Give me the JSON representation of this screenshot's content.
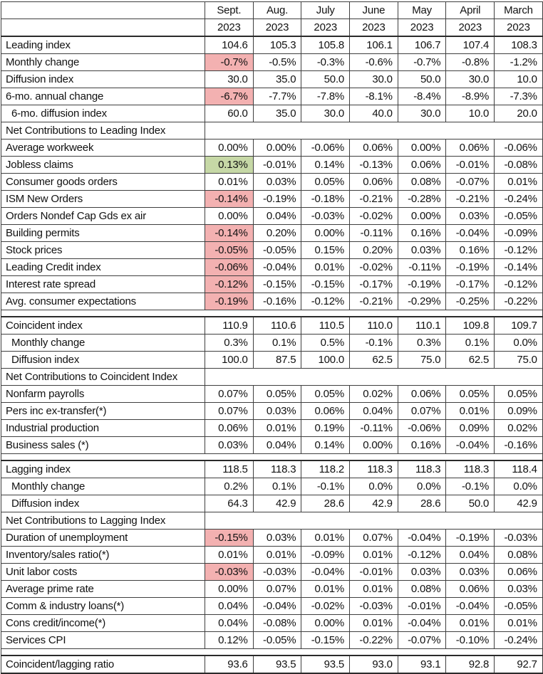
{
  "colors": {
    "highlight_red": "#f3b1b1",
    "highlight_green": "#c6d8a6",
    "border": "#3f3f3f",
    "text": "#111111"
  },
  "header": {
    "months": [
      "Sept.",
      "Aug.",
      "July",
      "June",
      "May",
      "April",
      "March"
    ],
    "years": [
      "2023",
      "2023",
      "2023",
      "2023",
      "2023",
      "2023",
      "2023"
    ]
  },
  "rows": [
    {
      "type": "data",
      "label": "Leading index",
      "values": [
        "104.6",
        "105.3",
        "105.8",
        "106.1",
        "106.7",
        "107.4",
        "108.3"
      ]
    },
    {
      "type": "data",
      "label": "Monthly change",
      "values": [
        "-0.7%",
        "-0.5%",
        "-0.3%",
        "-0.6%",
        "-0.7%",
        "-0.8%",
        "-1.2%"
      ],
      "highlight": "red"
    },
    {
      "type": "data",
      "label": "Diffusion index",
      "values": [
        "30.0",
        "35.0",
        "50.0",
        "30.0",
        "50.0",
        "30.0",
        "10.0"
      ]
    },
    {
      "type": "data",
      "label": "6-mo. annual change",
      "values": [
        "-6.7%",
        "-7.7%",
        "-7.8%",
        "-8.1%",
        "-8.4%",
        "-8.9%",
        "-7.3%"
      ],
      "highlight": "red"
    },
    {
      "type": "data",
      "label": "6-mo. diffusion index",
      "indent": true,
      "values": [
        "60.0",
        "35.0",
        "30.0",
        "40.0",
        "30.0",
        "10.0",
        "20.0"
      ]
    },
    {
      "type": "section",
      "label": "Net Contributions to Leading Index"
    },
    {
      "type": "data",
      "label": "Average workweek",
      "values": [
        "0.00%",
        "0.00%",
        "-0.06%",
        "0.06%",
        "0.00%",
        "0.06%",
        "-0.06%"
      ]
    },
    {
      "type": "data",
      "label": "Jobless claims",
      "values": [
        "0.13%",
        "-0.01%",
        "0.14%",
        "-0.13%",
        "0.06%",
        "-0.01%",
        "-0.08%"
      ],
      "highlight": "green"
    },
    {
      "type": "data",
      "label": "Consumer goods orders",
      "values": [
        "0.01%",
        "0.03%",
        "0.05%",
        "0.06%",
        "0.08%",
        "-0.07%",
        "0.01%"
      ]
    },
    {
      "type": "data",
      "label": "ISM New Orders",
      "values": [
        "-0.14%",
        "-0.19%",
        "-0.18%",
        "-0.21%",
        "-0.28%",
        "-0.21%",
        "-0.24%"
      ],
      "highlight": "red"
    },
    {
      "type": "data",
      "label": "Orders Nondef Cap Gds ex air",
      "values": [
        "0.00%",
        "0.04%",
        "-0.03%",
        "-0.02%",
        "0.00%",
        "0.03%",
        "-0.05%"
      ]
    },
    {
      "type": "data",
      "label": "Building permits",
      "values": [
        "-0.14%",
        "0.20%",
        "0.00%",
        "-0.11%",
        "0.16%",
        "-0.04%",
        "-0.09%"
      ],
      "highlight": "red"
    },
    {
      "type": "data",
      "label": "Stock prices",
      "values": [
        "-0.05%",
        "-0.05%",
        "0.15%",
        "0.20%",
        "0.03%",
        "0.16%",
        "-0.12%"
      ],
      "highlight": "red"
    },
    {
      "type": "data",
      "label": "Leading Credit index",
      "values": [
        "-0.06%",
        "-0.04%",
        "0.01%",
        "-0.02%",
        "-0.11%",
        "-0.19%",
        "-0.14%"
      ],
      "highlight": "red"
    },
    {
      "type": "data",
      "label": "Interest rate spread",
      "values": [
        "-0.12%",
        "-0.15%",
        "-0.15%",
        "-0.17%",
        "-0.19%",
        "-0.17%",
        "-0.12%"
      ],
      "highlight": "red"
    },
    {
      "type": "data",
      "label": "Avg. consumer expectations",
      "values": [
        "-0.19%",
        "-0.16%",
        "-0.12%",
        "-0.21%",
        "-0.29%",
        "-0.25%",
        "-0.22%"
      ],
      "highlight": "red"
    },
    {
      "type": "spacer"
    },
    {
      "type": "data",
      "label": "Coincident index",
      "values": [
        "110.9",
        "110.6",
        "110.5",
        "110.0",
        "110.1",
        "109.8",
        "109.7"
      ]
    },
    {
      "type": "data",
      "label": "Monthly change",
      "indent": true,
      "values": [
        "0.3%",
        "0.1%",
        "0.5%",
        "-0.1%",
        "0.3%",
        "0.1%",
        "0.0%"
      ]
    },
    {
      "type": "data",
      "label": "Diffusion index",
      "indent": true,
      "values": [
        "100.0",
        "87.5",
        "100.0",
        "62.5",
        "75.0",
        "62.5",
        "75.0"
      ]
    },
    {
      "type": "section",
      "label": "Net Contributions to Coincident Index"
    },
    {
      "type": "data",
      "label": "Nonfarm payrolls",
      "values": [
        "0.07%",
        "0.05%",
        "0.05%",
        "0.02%",
        "0.06%",
        "0.05%",
        "0.05%"
      ]
    },
    {
      "type": "data",
      "label": "Pers inc ex-transfer(*)",
      "values": [
        "0.07%",
        "0.03%",
        "0.06%",
        "0.04%",
        "0.07%",
        "0.01%",
        "0.09%"
      ]
    },
    {
      "type": "data",
      "label": "Industrial production",
      "values": [
        "0.06%",
        "0.01%",
        "0.19%",
        "-0.11%",
        "-0.06%",
        "0.09%",
        "0.02%"
      ]
    },
    {
      "type": "data",
      "label": "Business sales (*)",
      "values": [
        "0.03%",
        "0.04%",
        "0.14%",
        "0.00%",
        "0.16%",
        "-0.04%",
        "-0.16%"
      ]
    },
    {
      "type": "spacer"
    },
    {
      "type": "data",
      "label": "Lagging index",
      "values": [
        "118.5",
        "118.3",
        "118.2",
        "118.3",
        "118.3",
        "118.3",
        "118.4"
      ]
    },
    {
      "type": "data",
      "label": "Monthly change",
      "indent": true,
      "values": [
        "0.2%",
        "0.1%",
        "-0.1%",
        "0.0%",
        "0.0%",
        "-0.1%",
        "0.0%"
      ]
    },
    {
      "type": "data",
      "label": "Diffusion index",
      "indent": true,
      "values": [
        "64.3",
        "42.9",
        "28.6",
        "42.9",
        "28.6",
        "50.0",
        "42.9"
      ]
    },
    {
      "type": "section",
      "label": "Net Contributions to Lagging Index"
    },
    {
      "type": "data",
      "label": "Duration of unemployment",
      "values": [
        "-0.15%",
        "0.03%",
        "0.01%",
        "0.07%",
        "-0.04%",
        "-0.19%",
        "-0.03%"
      ],
      "highlight": "red"
    },
    {
      "type": "data",
      "label": "Inventory/sales ratio(*)",
      "values": [
        "0.01%",
        "0.01%",
        "-0.09%",
        "0.01%",
        "-0.12%",
        "0.04%",
        "0.08%"
      ]
    },
    {
      "type": "data",
      "label": "Unit labor costs",
      "values": [
        "-0.03%",
        "-0.03%",
        "-0.04%",
        "-0.01%",
        "0.03%",
        "0.03%",
        "0.06%"
      ],
      "highlight": "red"
    },
    {
      "type": "data",
      "label": "Average prime rate",
      "values": [
        "0.00%",
        "0.07%",
        "0.01%",
        "0.01%",
        "0.08%",
        "0.06%",
        "0.03%"
      ]
    },
    {
      "type": "data",
      "label": "Comm & industry loans(*)",
      "values": [
        "0.04%",
        "-0.04%",
        "-0.02%",
        "-0.03%",
        "-0.01%",
        "-0.04%",
        "-0.05%"
      ]
    },
    {
      "type": "data",
      "label": "Cons credit/income(*)",
      "values": [
        "0.04%",
        "-0.08%",
        "0.00%",
        "0.01%",
        "-0.04%",
        "0.01%",
        "0.01%"
      ]
    },
    {
      "type": "data",
      "label": "Services CPI",
      "values": [
        "0.12%",
        "-0.05%",
        "-0.15%",
        "-0.22%",
        "-0.07%",
        "-0.10%",
        "-0.24%"
      ]
    },
    {
      "type": "spacer"
    },
    {
      "type": "data",
      "label": "Coincident/lagging ratio",
      "values": [
        "93.6",
        "93.5",
        "93.5",
        "93.0",
        "93.1",
        "92.8",
        "92.7"
      ]
    }
  ]
}
